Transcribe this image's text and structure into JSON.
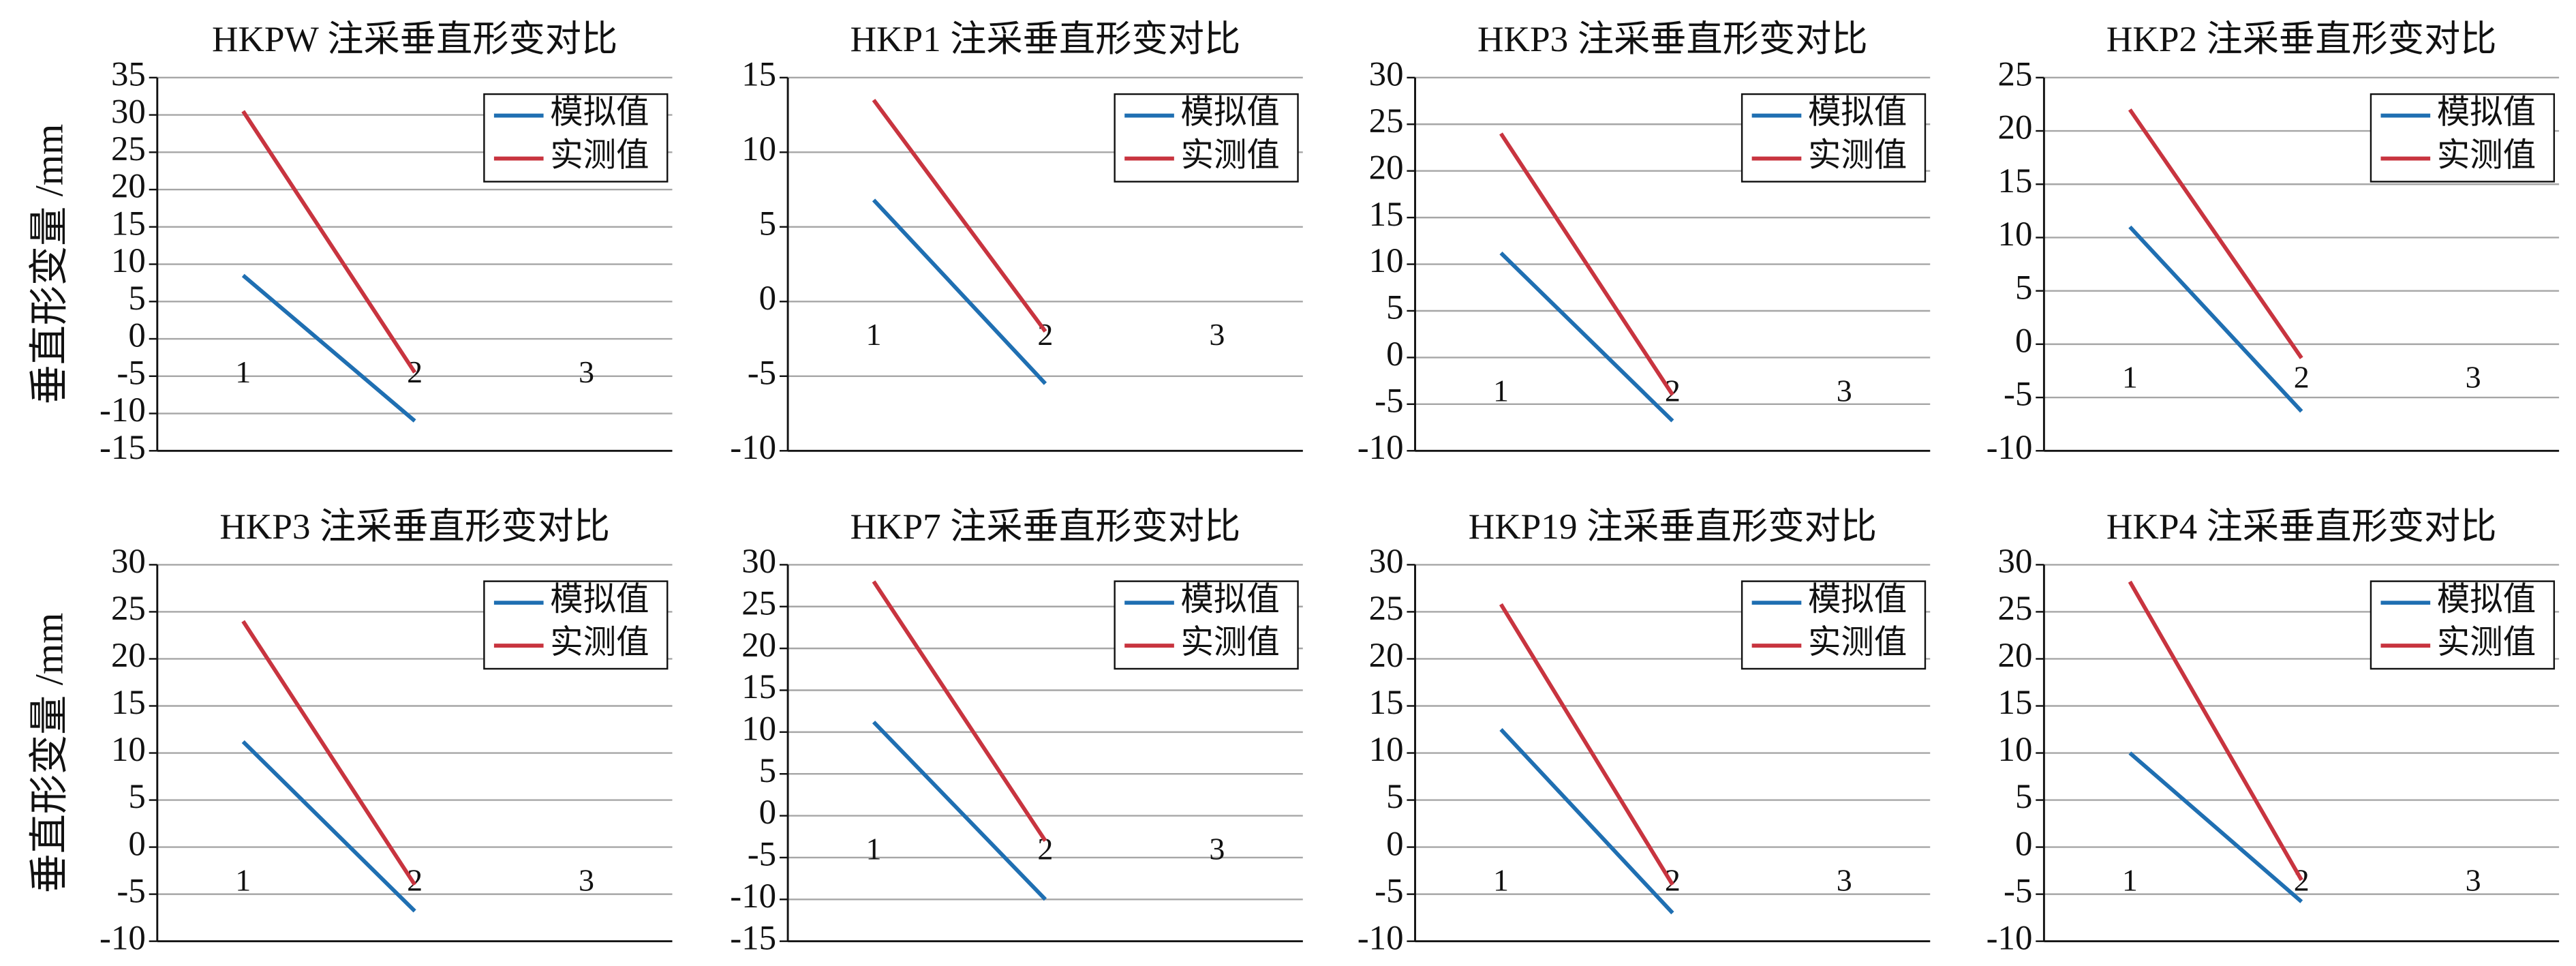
{
  "chart_data": [
    {
      "type": "line",
      "title": "HKPW 注采垂直形变对比",
      "ylabel": "垂直形变量 /mm",
      "categories": [
        "1",
        "2",
        "3"
      ],
      "ylim": [
        -15,
        35
      ],
      "yticks": [
        -15,
        -10,
        -5,
        0,
        5,
        10,
        15,
        20,
        25,
        30,
        35
      ],
      "grid": true,
      "legend": "upper right",
      "series": [
        {
          "name": "模拟值",
          "color": "#1f6fb2",
          "values": [
            8.5,
            -11,
            null
          ]
        },
        {
          "name": "实测值",
          "color": "#c8343f",
          "values": [
            30.5,
            -4.5,
            null
          ]
        }
      ]
    },
    {
      "type": "line",
      "title": "HKP1 注采垂直形变对比",
      "categories": [
        "1",
        "2",
        "3"
      ],
      "ylim": [
        -10,
        15
      ],
      "yticks": [
        -10,
        -5,
        0,
        5,
        10,
        15
      ],
      "grid": true,
      "legend": "upper right",
      "series": [
        {
          "name": "模拟值",
          "color": "#1f6fb2",
          "values": [
            6.8,
            -5.5,
            null
          ]
        },
        {
          "name": "实测值",
          "color": "#c8343f",
          "values": [
            13.5,
            -2,
            null
          ]
        }
      ]
    },
    {
      "type": "line",
      "title": "HKP3 注采垂直形变对比",
      "categories": [
        "1",
        "2",
        "3"
      ],
      "ylim": [
        -10,
        30
      ],
      "yticks": [
        -10,
        -5,
        0,
        5,
        10,
        15,
        20,
        25,
        30
      ],
      "grid": true,
      "legend": "upper right",
      "series": [
        {
          "name": "模拟值",
          "color": "#1f6fb2",
          "values": [
            11.2,
            -6.8,
            null
          ]
        },
        {
          "name": "实测值",
          "color": "#c8343f",
          "values": [
            24,
            -4,
            null
          ]
        }
      ]
    },
    {
      "type": "line",
      "title": "HKP2 注采垂直形变对比",
      "categories": [
        "1",
        "2",
        "3"
      ],
      "ylim": [
        -10,
        25
      ],
      "yticks": [
        -10,
        -5,
        0,
        5,
        10,
        15,
        20,
        25
      ],
      "grid": true,
      "legend": "upper right",
      "series": [
        {
          "name": "模拟值",
          "color": "#1f6fb2",
          "values": [
            11,
            -6.3,
            null
          ]
        },
        {
          "name": "实测值",
          "color": "#c8343f",
          "values": [
            22,
            -1.3,
            null
          ]
        }
      ]
    },
    {
      "type": "line",
      "title": "HKP3 注采垂直形变对比",
      "ylabel": "垂直形变量 /mm",
      "categories": [
        "1",
        "2",
        "3"
      ],
      "ylim": [
        -10,
        30
      ],
      "yticks": [
        -10,
        -5,
        0,
        5,
        10,
        15,
        20,
        25,
        30
      ],
      "grid": true,
      "legend": "upper right",
      "series": [
        {
          "name": "模拟值",
          "color": "#1f6fb2",
          "values": [
            11.2,
            -6.8,
            null
          ]
        },
        {
          "name": "实测值",
          "color": "#c8343f",
          "values": [
            24,
            -4,
            null
          ]
        }
      ]
    },
    {
      "type": "line",
      "title": "HKP7 注采垂直形变对比",
      "categories": [
        "1",
        "2",
        "3"
      ],
      "ylim": [
        -15,
        30
      ],
      "yticks": [
        -15,
        -10,
        -5,
        0,
        5,
        10,
        15,
        20,
        25,
        30
      ],
      "grid": true,
      "legend": "upper right",
      "series": [
        {
          "name": "模拟值",
          "color": "#1f6fb2",
          "values": [
            11.2,
            -10,
            null
          ]
        },
        {
          "name": "实测值",
          "color": "#c8343f",
          "values": [
            28,
            -3,
            null
          ]
        }
      ]
    },
    {
      "type": "line",
      "title": "HKP19 注采垂直形变对比",
      "categories": [
        "1",
        "2",
        "3"
      ],
      "ylim": [
        -10,
        30
      ],
      "yticks": [
        -10,
        -5,
        0,
        5,
        10,
        15,
        20,
        25,
        30
      ],
      "grid": true,
      "legend": "upper right",
      "series": [
        {
          "name": "模拟值",
          "color": "#1f6fb2",
          "values": [
            12.5,
            -7,
            null
          ]
        },
        {
          "name": "实测值",
          "color": "#c8343f",
          "values": [
            25.8,
            -4,
            null
          ]
        }
      ]
    },
    {
      "type": "line",
      "title": "HKP4 注采垂直形变对比",
      "categories": [
        "1",
        "2",
        "3"
      ],
      "ylim": [
        -10,
        30
      ],
      "yticks": [
        -10,
        -5,
        0,
        5,
        10,
        15,
        20,
        25,
        30
      ],
      "grid": true,
      "legend": "upper right",
      "series": [
        {
          "name": "模拟值",
          "color": "#1f6fb2",
          "values": [
            10,
            -5.8,
            null
          ]
        },
        {
          "name": "实测值",
          "color": "#c8343f",
          "values": [
            28.2,
            -3.5,
            null
          ]
        }
      ]
    }
  ]
}
